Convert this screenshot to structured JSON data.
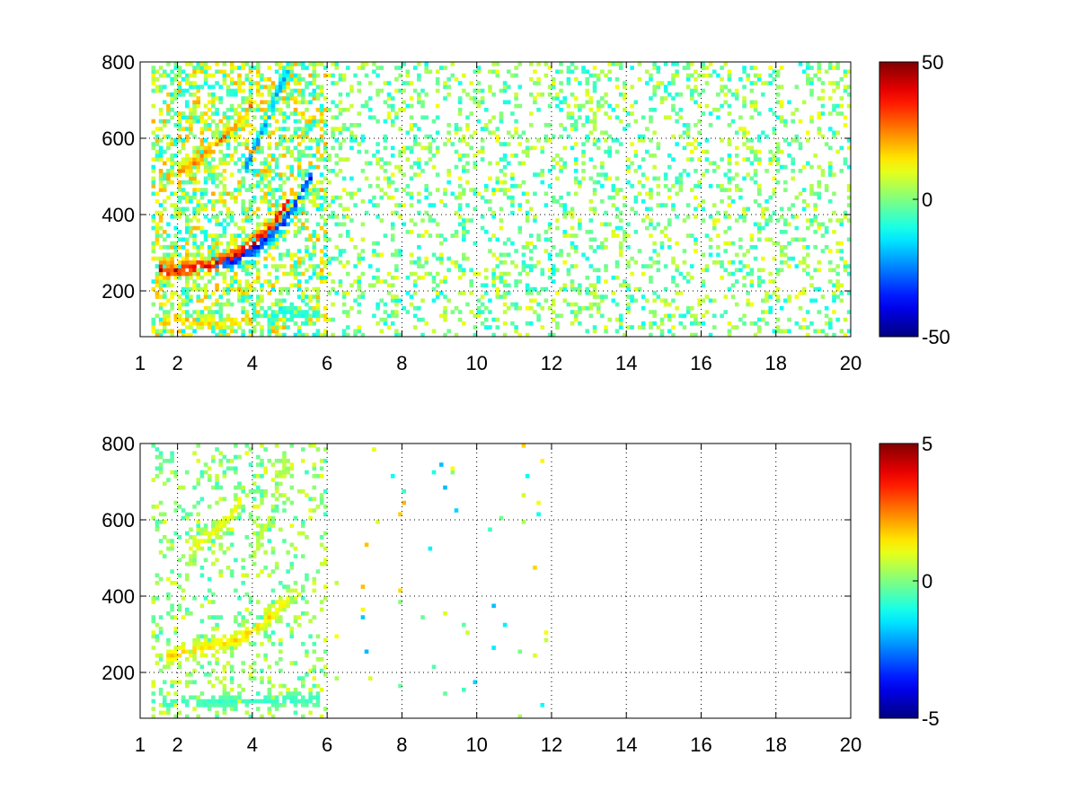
{
  "figure": {
    "background": "#ffffff",
    "colormap": "jet"
  },
  "chart_data": [
    {
      "type": "heatmap",
      "title": "",
      "xlabel": "",
      "ylabel": "",
      "xlim": [
        1,
        20
      ],
      "ylim": [
        80,
        800
      ],
      "xticks": [
        1,
        2,
        4,
        6,
        8,
        10,
        12,
        14,
        16,
        18,
        20
      ],
      "yticks": [
        200,
        400,
        600,
        800
      ],
      "grid": true,
      "colorbar": {
        "range": [
          -50,
          50
        ],
        "ticks": [
          -50,
          0,
          50
        ],
        "colormap": "jet"
      },
      "features": [
        {
          "name": "",
          "kind": "curve",
          "value": 48,
          "points": [
            [
              1.5,
              255
            ],
            [
              2,
              255
            ],
            [
              2.5,
              262
            ],
            [
              3,
              272
            ],
            [
              3.5,
              292
            ],
            [
              4,
              322
            ],
            [
              4.5,
              372
            ],
            [
              5,
              440
            ]
          ]
        },
        {
          "name": "",
          "kind": "curve",
          "value": -46,
          "points": [
            [
              3,
              268
            ],
            [
              3.5,
              282
            ],
            [
              4,
              305
            ],
            [
              4.5,
              345
            ],
            [
              5,
              400
            ],
            [
              5.3,
              450
            ],
            [
              5.6,
              510
            ]
          ]
        },
        {
          "name": "",
          "kind": "curve",
          "value": 30,
          "points": [
            [
              2,
              510
            ],
            [
              2.5,
              540
            ],
            [
              3,
              580
            ],
            [
              3.5,
              630
            ],
            [
              4,
              690
            ]
          ]
        },
        {
          "name": "",
          "kind": "curve",
          "value": -30,
          "points": [
            [
              3.8,
              520
            ],
            [
              4.2,
              600
            ],
            [
              4.6,
              700
            ],
            [
              5,
              790
            ]
          ]
        },
        {
          "name": "",
          "kind": "band",
          "value": 25,
          "points": [
            [
              1.6,
              120
            ],
            [
              3.5,
              120
            ]
          ]
        },
        {
          "name": "",
          "kind": "band",
          "value": -15,
          "points": [
            [
              4,
              140
            ],
            [
              5.8,
              140
            ]
          ]
        }
      ],
      "noise": {
        "x_range": [
          6,
          20
        ],
        "y_range": [
          80,
          800
        ],
        "value_range": [
          -12,
          12
        ],
        "density": 0.22
      }
    },
    {
      "type": "heatmap",
      "title": "",
      "xlabel": "",
      "ylabel": "",
      "xlim": [
        1,
        20
      ],
      "ylim": [
        80,
        800
      ],
      "xticks": [
        1,
        2,
        4,
        6,
        8,
        10,
        12,
        14,
        16,
        18,
        20
      ],
      "yticks": [
        200,
        400,
        600,
        800
      ],
      "grid": true,
      "colorbar": {
        "range": [
          -5,
          5
        ],
        "ticks": [
          -5,
          0,
          5
        ],
        "colormap": "jet"
      },
      "features": [
        {
          "name": "",
          "kind": "curve",
          "value": 2,
          "points": [
            [
              1.7,
              240
            ],
            [
              2.2,
              255
            ],
            [
              3,
              270
            ],
            [
              3.5,
              285
            ],
            [
              4,
              310
            ],
            [
              4.5,
              350
            ],
            [
              5,
              400
            ]
          ]
        },
        {
          "name": "",
          "kind": "curve",
          "value": 1.5,
          "points": [
            [
              2.3,
              520
            ],
            [
              3,
              570
            ],
            [
              3.5,
              620
            ],
            [
              3.8,
              680
            ]
          ]
        },
        {
          "name": "",
          "kind": "curve",
          "value": 1,
          "points": [
            [
              4,
              500
            ],
            [
              4.5,
              620
            ],
            [
              4.9,
              760
            ]
          ]
        },
        {
          "name": "",
          "kind": "band",
          "value": -1,
          "points": [
            [
              1.6,
              120
            ],
            [
              5.8,
              130
            ]
          ]
        }
      ],
      "noise": {
        "x_range": [
          6,
          12
        ],
        "y_range": [
          80,
          800
        ],
        "value_range": [
          -2,
          2
        ],
        "density": 0.01
      }
    }
  ]
}
